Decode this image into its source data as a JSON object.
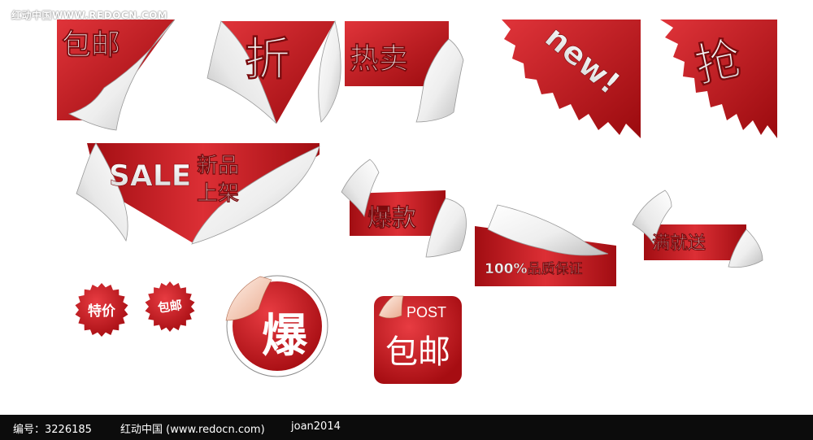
{
  "watermark": "红动中国WWW.REDOCN.COM",
  "stickers": {
    "s1": "包邮",
    "s2": "折",
    "s3": "热卖",
    "s4": "new!",
    "s5": "抢",
    "s6_en": "SALE",
    "s6_cn1": "新品",
    "s6_cn2": "上架",
    "s7": "爆款",
    "s8": "100%品质保证",
    "s9": "满就送",
    "s10": "特价",
    "s11": "包邮",
    "s12": "爆",
    "s13_en": "POST",
    "s13_cn": "包邮"
  },
  "footer": {
    "id": "编号：3226185",
    "site": "红动中国 (www.redocn.com)",
    "author": "joan2014"
  },
  "colors": {
    "red_light": "#e0343a",
    "red_dark": "#9a0a0e",
    "paper": "#f4f4f4"
  }
}
